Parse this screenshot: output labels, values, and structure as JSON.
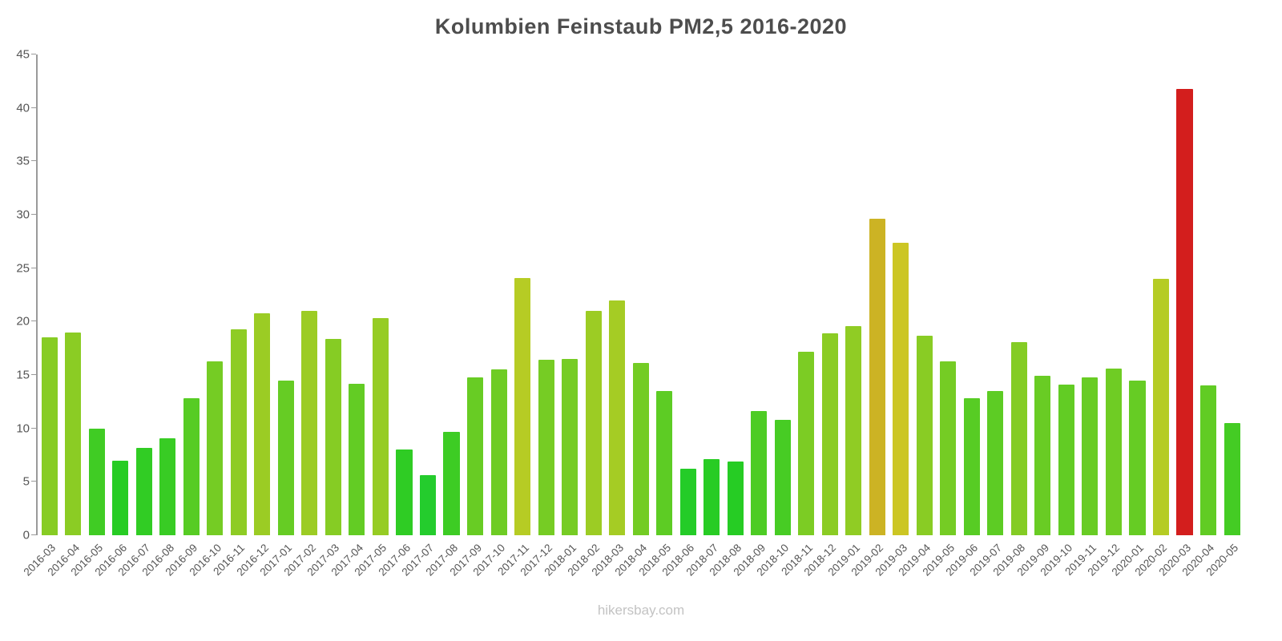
{
  "title": "Kolumbien Feinstaub PM2,5 2016-2020",
  "footer": "hikersbay.com",
  "chart_data": {
    "type": "bar",
    "title": "Kolumbien Feinstaub PM2,5 2016-2020",
    "xlabel": "",
    "ylabel": "",
    "ylim": [
      0,
      45
    ],
    "ytick_labels": [
      "0",
      "5",
      "10",
      "15",
      "20",
      "25",
      "30",
      "35",
      "40",
      "45"
    ],
    "ytick_values": [
      0,
      5,
      10,
      15,
      20,
      25,
      30,
      35,
      40,
      45
    ],
    "grid": false,
    "legend": false,
    "colors": {
      "low_green": "#24c93b",
      "mid_yellow_green": "#a3cf2b",
      "high_yellow": "#d4b82a",
      "extreme_red": "#e02a1f"
    },
    "categories": [
      "2016-03",
      "2016-04",
      "2016-05",
      "2016-06",
      "2016-07",
      "2016-08",
      "2016-09",
      "2016-10",
      "2016-11",
      "2016-12",
      "2017-01",
      "2017-02",
      "2017-03",
      "2017-04",
      "2017-05",
      "2017-06",
      "2017-07",
      "2017-08",
      "2017-09",
      "2017-10",
      "2017-11",
      "2017-12",
      "2018-01",
      "2018-02",
      "2018-03",
      "2018-04",
      "2018-05",
      "2018-06",
      "2018-07",
      "2018-08",
      "2018-09",
      "2018-10",
      "2018-11",
      "2018-12",
      "2019-01",
      "2019-02",
      "2019-03",
      "2019-04",
      "2019-05",
      "2019-06",
      "2019-07",
      "2019-08",
      "2019-09",
      "2019-10",
      "2019-11",
      "2019-12",
      "2020-01",
      "2020-02",
      "2020-03",
      "2020-04",
      "2020-05"
    ],
    "values": [
      18.5,
      19.0,
      10.0,
      7.0,
      8.2,
      9.1,
      12.8,
      16.3,
      19.3,
      20.8,
      14.5,
      21.0,
      18.4,
      14.2,
      20.3,
      8.0,
      5.6,
      9.7,
      14.8,
      15.5,
      24.1,
      16.4,
      16.5,
      21.0,
      22.0,
      16.1,
      13.5,
      6.2,
      7.1,
      6.9,
      11.6,
      10.8,
      17.2,
      18.9,
      19.6,
      29.6,
      27.4,
      18.7,
      16.3,
      12.8,
      13.5,
      18.1,
      14.9,
      14.1,
      14.8,
      15.6,
      14.5,
      24.0,
      41.8,
      14.0,
      10.5
    ]
  }
}
